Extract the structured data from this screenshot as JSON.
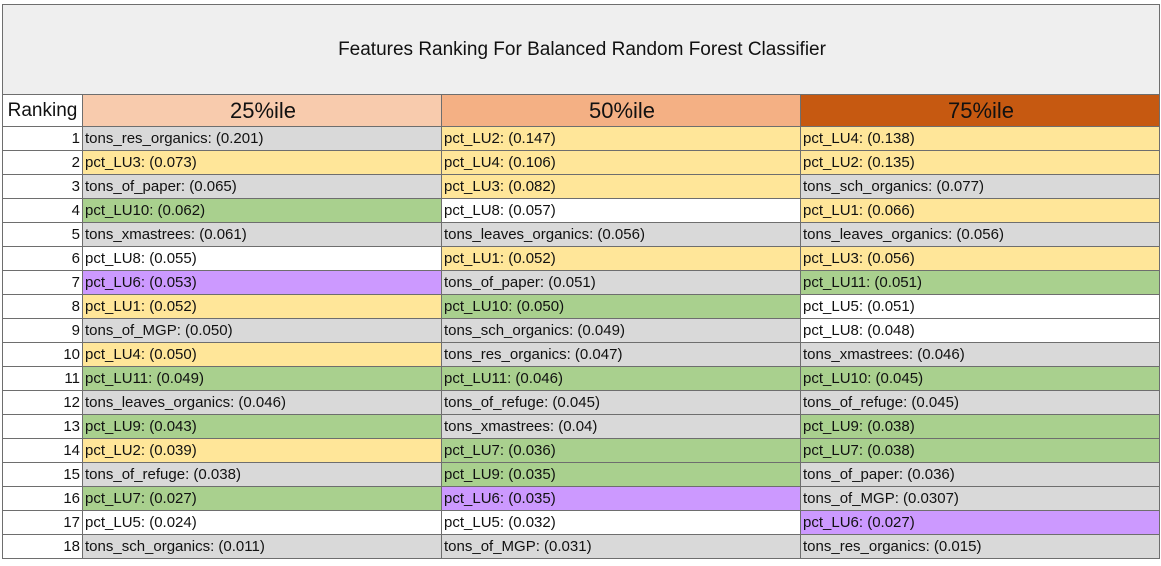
{
  "title": "Features Ranking For Balanced Random Forest Classifier",
  "headers": {
    "ranking": "Ranking",
    "columns": [
      {
        "label": "25%ile",
        "color": "#f8cbad"
      },
      {
        "label": "50%ile",
        "color": "#f4b084"
      },
      {
        "label": "75%ile",
        "color": "#c65911"
      }
    ]
  },
  "fill_colors": {
    "gray": "#d9d9d9",
    "yellow": "#ffe699",
    "green": "#a9d08e",
    "white": "#ffffff",
    "purple": "#cc99ff"
  },
  "rows": [
    {
      "rank": "1",
      "cells": [
        {
          "text": "tons_res_organics: (0.201)",
          "fill": "gray"
        },
        {
          "text": "pct_LU2: (0.147)",
          "fill": "yellow"
        },
        {
          "text": "pct_LU4: (0.138)",
          "fill": "yellow"
        }
      ]
    },
    {
      "rank": "2",
      "cells": [
        {
          "text": "pct_LU3: (0.073)",
          "fill": "yellow"
        },
        {
          "text": "pct_LU4: (0.106)",
          "fill": "yellow"
        },
        {
          "text": "pct_LU2: (0.135)",
          "fill": "yellow"
        }
      ]
    },
    {
      "rank": "3",
      "cells": [
        {
          "text": "tons_of_paper: (0.065)",
          "fill": "gray"
        },
        {
          "text": "pct_LU3: (0.082)",
          "fill": "yellow"
        },
        {
          "text": "tons_sch_organics: (0.077)",
          "fill": "gray"
        }
      ]
    },
    {
      "rank": "4",
      "cells": [
        {
          "text": "pct_LU10: (0.062)",
          "fill": "green"
        },
        {
          "text": "pct_LU8: (0.057)",
          "fill": "white"
        },
        {
          "text": "pct_LU1: (0.066)",
          "fill": "yellow"
        }
      ]
    },
    {
      "rank": "5",
      "cells": [
        {
          "text": "tons_xmastrees: (0.061)",
          "fill": "gray"
        },
        {
          "text": "tons_leaves_organics: (0.056)",
          "fill": "gray"
        },
        {
          "text": "tons_leaves_organics: (0.056)",
          "fill": "gray"
        }
      ]
    },
    {
      "rank": "6",
      "cells": [
        {
          "text": "pct_LU8: (0.055)",
          "fill": "white"
        },
        {
          "text": "pct_LU1: (0.052)",
          "fill": "yellow"
        },
        {
          "text": "pct_LU3: (0.056)",
          "fill": "yellow"
        }
      ]
    },
    {
      "rank": "7",
      "cells": [
        {
          "text": "pct_LU6: (0.053)",
          "fill": "purple"
        },
        {
          "text": "tons_of_paper: (0.051)",
          "fill": "gray"
        },
        {
          "text": "pct_LU11: (0.051)",
          "fill": "green"
        }
      ]
    },
    {
      "rank": "8",
      "cells": [
        {
          "text": "pct_LU1: (0.052)",
          "fill": "yellow"
        },
        {
          "text": "pct_LU10: (0.050)",
          "fill": "green"
        },
        {
          "text": "pct_LU5: (0.051)",
          "fill": "white"
        }
      ]
    },
    {
      "rank": "9",
      "cells": [
        {
          "text": "tons_of_MGP: (0.050)",
          "fill": "gray"
        },
        {
          "text": "tons_sch_organics: (0.049)",
          "fill": "gray"
        },
        {
          "text": "pct_LU8: (0.048)",
          "fill": "white"
        }
      ]
    },
    {
      "rank": "10",
      "cells": [
        {
          "text": "pct_LU4: (0.050)",
          "fill": "yellow"
        },
        {
          "text": "tons_res_organics: (0.047)",
          "fill": "gray"
        },
        {
          "text": "tons_xmastrees: (0.046)",
          "fill": "gray"
        }
      ]
    },
    {
      "rank": "11",
      "cells": [
        {
          "text": "pct_LU11: (0.049)",
          "fill": "green"
        },
        {
          "text": "pct_LU11: (0.046)",
          "fill": "green"
        },
        {
          "text": "pct_LU10: (0.045)",
          "fill": "green"
        }
      ]
    },
    {
      "rank": "12",
      "cells": [
        {
          "text": "tons_leaves_organics: (0.046)",
          "fill": "gray"
        },
        {
          "text": "tons_of_refuge: (0.045)",
          "fill": "gray"
        },
        {
          "text": "tons_of_refuge: (0.045)",
          "fill": "gray"
        }
      ]
    },
    {
      "rank": "13",
      "cells": [
        {
          "text": "pct_LU9: (0.043)",
          "fill": "green"
        },
        {
          "text": "tons_xmastrees: (0.04)",
          "fill": "gray"
        },
        {
          "text": "pct_LU9: (0.038)",
          "fill": "green"
        }
      ]
    },
    {
      "rank": "14",
      "cells": [
        {
          "text": "pct_LU2: (0.039)",
          "fill": "yellow"
        },
        {
          "text": "pct_LU7: (0.036)",
          "fill": "green"
        },
        {
          "text": "pct_LU7: (0.038)",
          "fill": "green"
        }
      ]
    },
    {
      "rank": "15",
      "cells": [
        {
          "text": "tons_of_refuge: (0.038)",
          "fill": "gray"
        },
        {
          "text": "pct_LU9: (0.035)",
          "fill": "green"
        },
        {
          "text": "tons_of_paper: (0.036)",
          "fill": "gray"
        }
      ]
    },
    {
      "rank": "16",
      "cells": [
        {
          "text": "pct_LU7: (0.027)",
          "fill": "green"
        },
        {
          "text": "pct_LU6: (0.035)",
          "fill": "purple"
        },
        {
          "text": "tons_of_MGP: (0.0307)",
          "fill": "gray"
        }
      ]
    },
    {
      "rank": "17",
      "cells": [
        {
          "text": "pct_LU5: (0.024)",
          "fill": "white"
        },
        {
          "text": "pct_LU5: (0.032)",
          "fill": "white"
        },
        {
          "text": "pct_LU6: (0.027)",
          "fill": "purple"
        }
      ]
    },
    {
      "rank": "18",
      "cells": [
        {
          "text": "tons_sch_organics: (0.011)",
          "fill": "gray"
        },
        {
          "text": "tons_of_MGP: (0.031)",
          "fill": "gray"
        },
        {
          "text": "tons_res_organics: (0.015)",
          "fill": "gray"
        }
      ]
    }
  ]
}
